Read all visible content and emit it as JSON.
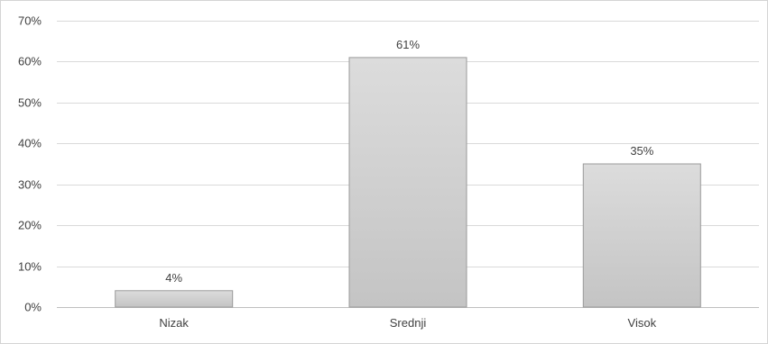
{
  "chart_data": {
    "type": "bar",
    "categories": [
      "Nizak",
      "Srednji",
      "Visok"
    ],
    "values": [
      4,
      61,
      35
    ],
    "data_labels": [
      "4%",
      "61%",
      "35%"
    ],
    "title": "",
    "xlabel": "",
    "ylabel": "",
    "ylim": [
      0,
      70
    ],
    "y_ticks": [
      0,
      10,
      20,
      30,
      40,
      50,
      60,
      70
    ],
    "y_tick_labels": [
      "0%",
      "10%",
      "20%",
      "30%",
      "40%",
      "50%",
      "60%",
      "70%"
    ],
    "grid": true,
    "legend": "none"
  },
  "colors": {
    "bar_fill_top": "#dcdcdc",
    "bar_fill_bottom": "#c4c4c4",
    "bar_stroke": "#9a9a9a",
    "gridline": "#d9d9d9",
    "axis_line": "#bfbfbf",
    "text": "#404040"
  }
}
